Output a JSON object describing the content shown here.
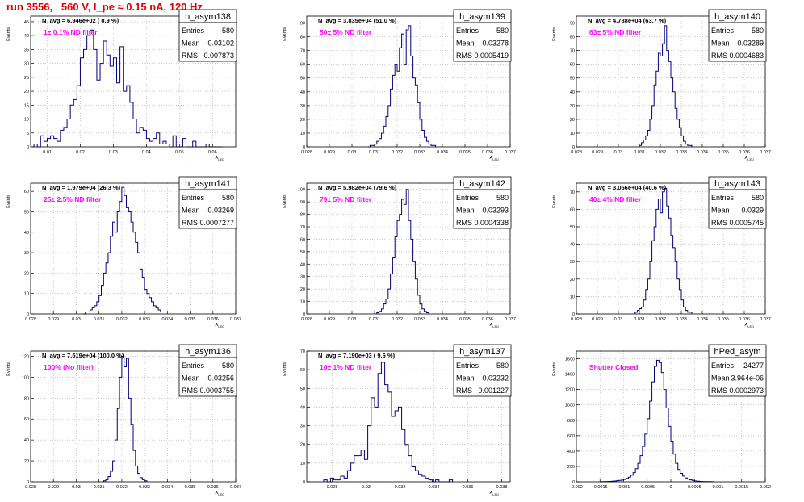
{
  "run_title": "run 3556,   560 V, I_pe ≈ 0.15 nA, 120 Hz",
  "colors": {
    "hist_line": "#00007a",
    "annotation": "#ff00ff",
    "title": "#e00000",
    "grid": "#aaaaaa"
  },
  "stat_labels": {
    "entries": "Entries",
    "mean": "Mean",
    "rms": "RMS"
  },
  "chart_data": [
    {
      "type": "histogram",
      "name": "h_asym138",
      "navg": "N_avg = 6.946e+02 ( 0.9 %)",
      "filter": "1± 0.1% ND filter",
      "entries": "580",
      "mean": "0.03102",
      "rms": "0.007873",
      "ylabel": "Events",
      "xlabel": "A_LED",
      "xlim": [
        0.005,
        0.067
      ],
      "ylim": [
        0,
        47
      ],
      "xticks": [
        0.01,
        0.02,
        0.03,
        0.04,
        0.05,
        0.06
      ],
      "xtick_labels": [
        "0.01",
        "0.02",
        "0.03",
        "0.04",
        "0.05",
        "0.06"
      ],
      "yticks": [
        0,
        5,
        10,
        15,
        20,
        25,
        30,
        35,
        40,
        45
      ],
      "bins": {
        "start": 0.006,
        "width": 0.001,
        "counts": [
          1,
          0,
          4,
          2,
          3,
          4,
          3,
          2,
          6,
          7,
          10,
          15,
          17,
          22,
          32,
          35,
          40,
          42,
          35,
          24,
          30,
          38,
          33,
          29,
          32,
          23,
          36,
          20,
          22,
          16,
          10,
          5,
          7,
          6,
          3,
          2,
          3,
          5,
          1,
          2,
          1,
          0,
          4,
          0,
          0,
          3,
          0,
          0,
          2,
          0,
          0,
          0,
          1,
          0,
          0,
          0,
          0
        ]
      }
    },
    {
      "type": "histogram",
      "name": "h_asym139",
      "navg": "N_avg = 3.835e+04 (51.0 %)",
      "filter": "50± 5% ND filter",
      "entries": "580",
      "mean": "0.03278",
      "rms": "0.0005419",
      "ylabel": "Events",
      "xlabel": "A_LED",
      "xlim": [
        0.028,
        0.037
      ],
      "ylim": [
        0,
        95
      ],
      "xticks": [
        0.028,
        0.029,
        0.03,
        0.031,
        0.032,
        0.033,
        0.034,
        0.035,
        0.036,
        0.037
      ],
      "xtick_labels": [
        "0.028",
        "0.029",
        "0.03",
        "0.031",
        "0.032",
        "0.033",
        "0.034",
        "0.035",
        "0.036",
        "0.037"
      ],
      "yticks": [
        0,
        10,
        20,
        30,
        40,
        50,
        60,
        70,
        80,
        90
      ],
      "bins": {
        "start": 0.0307,
        "width": 0.0001,
        "counts": [
          0,
          1,
          1,
          2,
          4,
          6,
          10,
          15,
          22,
          30,
          42,
          52,
          60,
          55,
          72,
          82,
          60,
          85,
          88,
          66,
          50,
          45,
          32,
          20,
          12,
          7,
          4,
          2,
          1,
          1
        ]
      }
    },
    {
      "type": "histogram",
      "name": "h_asym140",
      "navg": "N_avg = 4.788e+04 (63.7 %)",
      "filter": "63± 5% ND filter",
      "entries": "580",
      "mean": "0.03289",
      "rms": "0.0004683",
      "ylabel": "Events",
      "xlabel": "A_LED",
      "xlim": [
        0.028,
        0.037
      ],
      "ylim": [
        0,
        95
      ],
      "xticks": [
        0.028,
        0.029,
        0.03,
        0.031,
        0.032,
        0.033,
        0.034,
        0.035,
        0.036,
        0.037
      ],
      "xtick_labels": [
        "0.028",
        "0.029",
        "0.03",
        "0.031",
        "0.032",
        "0.033",
        "0.034",
        "0.035",
        "0.036",
        "0.037"
      ],
      "yticks": [
        0,
        10,
        20,
        30,
        40,
        50,
        60,
        70,
        80,
        90
      ],
      "bins": {
        "start": 0.031,
        "width": 0.0001,
        "counts": [
          1,
          3,
          5,
          8,
          12,
          20,
          30,
          45,
          55,
          68,
          66,
          75,
          88,
          70,
          62,
          50,
          40,
          28,
          20,
          14,
          8,
          4,
          2,
          1,
          1
        ]
      }
    },
    {
      "type": "histogram",
      "name": "h_asym141",
      "navg": "N_avg = 1.979e+04 (26.3 %)",
      "filter": "25± 2.5% ND filter",
      "entries": "580",
      "mean": "0.03269",
      "rms": "0.0007277",
      "ylabel": "Events",
      "xlabel": "A_LED",
      "xlim": [
        0.028,
        0.037
      ],
      "ylim": [
        0,
        64
      ],
      "xticks": [
        0.028,
        0.029,
        0.03,
        0.031,
        0.032,
        0.033,
        0.034,
        0.035,
        0.036,
        0.037
      ],
      "xtick_labels": [
        "0.028",
        "0.029",
        "0.03",
        "0.031",
        "0.032",
        "0.033",
        "0.034",
        "0.035",
        "0.036",
        "0.037"
      ],
      "yticks": [
        0,
        10,
        20,
        30,
        40,
        50,
        60
      ],
      "bins": {
        "start": 0.0303,
        "width": 0.0001,
        "counts": [
          0,
          1,
          1,
          2,
          3,
          4,
          6,
          9,
          14,
          20,
          25,
          30,
          38,
          45,
          40,
          50,
          55,
          62,
          58,
          52,
          50,
          45,
          40,
          35,
          30,
          22,
          18,
          12,
          10,
          8,
          6,
          4,
          3,
          2,
          1,
          1
        ]
      }
    },
    {
      "type": "histogram",
      "name": "h_asym142",
      "navg": "N_avg = 5.982e+04 (79.6 %)",
      "filter": "79± 5% ND filter",
      "entries": "580",
      "mean": "0.03293",
      "rms": "0.0004338",
      "ylabel": "Events",
      "xlabel": "A_LED",
      "xlim": [
        0.028,
        0.037
      ],
      "ylim": [
        0,
        105
      ],
      "xticks": [
        0.028,
        0.029,
        0.03,
        0.031,
        0.032,
        0.033,
        0.034,
        0.035,
        0.036,
        0.037
      ],
      "xtick_labels": [
        "0.028",
        "0.029",
        "0.03",
        "0.031",
        "0.032",
        "0.033",
        "0.034",
        "0.035",
        "0.036",
        "0.037"
      ],
      "yticks": [
        0,
        10,
        20,
        30,
        40,
        50,
        60,
        70,
        80,
        90,
        100
      ],
      "bins": {
        "start": 0.0311,
        "width": 0.0001,
        "counts": [
          1,
          2,
          4,
          8,
          12,
          20,
          32,
          45,
          62,
          75,
          80,
          92,
          88,
          100,
          75,
          60,
          42,
          28,
          15,
          8,
          4,
          2,
          1
        ]
      }
    },
    {
      "type": "histogram",
      "name": "h_asym143",
      "navg": "N_avg = 3.056e+04 (40.6 %)",
      "filter": "40± 4% ND filter",
      "entries": "580",
      "mean": "0.0329",
      "rms": "0.0005745",
      "ylabel": "Events",
      "xlabel": "A_LED",
      "xlim": [
        0.028,
        0.037
      ],
      "ylim": [
        0,
        75
      ],
      "xticks": [
        0.028,
        0.029,
        0.03,
        0.031,
        0.032,
        0.033,
        0.034,
        0.035,
        0.036,
        0.037
      ],
      "xtick_labels": [
        "0.028",
        "0.029",
        "0.03",
        "0.031",
        "0.032",
        "0.033",
        "0.034",
        "0.035",
        "0.036",
        "0.037"
      ],
      "yticks": [
        0,
        10,
        20,
        30,
        40,
        50,
        60,
        70
      ],
      "bins": {
        "start": 0.0308,
        "width": 0.0001,
        "counts": [
          1,
          2,
          3,
          4,
          8,
          14,
          20,
          30,
          42,
          50,
          60,
          66,
          58,
          70,
          72,
          62,
          55,
          45,
          38,
          30,
          20,
          14,
          8,
          4,
          2,
          1,
          1
        ]
      }
    },
    {
      "type": "histogram",
      "name": "h_asym136",
      "navg": "N_avg = 7.519e+04 (100.0 %)",
      "filter": "100% (No filter)",
      "entries": "580",
      "mean": "0.03256",
      "rms": "0.0003755",
      "ylabel": "Events",
      "xlabel": "A_LED",
      "xlim": [
        0.028,
        0.037
      ],
      "ylim": [
        0,
        125
      ],
      "xticks": [
        0.028,
        0.029,
        0.03,
        0.031,
        0.032,
        0.033,
        0.034,
        0.035,
        0.036,
        0.037
      ],
      "xtick_labels": [
        "0.028",
        "0.029",
        "0.03",
        "0.031",
        "0.032",
        "0.033",
        "0.034",
        "0.035",
        "0.036",
        "0.037"
      ],
      "yticks": [
        0,
        20,
        40,
        60,
        80,
        100,
        120
      ],
      "bins": {
        "start": 0.0312,
        "width": 0.0001,
        "counts": [
          1,
          2,
          5,
          10,
          20,
          40,
          70,
          100,
          120,
          110,
          118,
          80,
          55,
          30,
          15,
          8,
          4,
          2,
          1
        ]
      }
    },
    {
      "type": "histogram",
      "name": "h_asym137",
      "navg": "N_avg = 7.190e+03 ( 9.6 %)",
      "filter": "10± 1% ND filter",
      "entries": "580",
      "mean": "0.03232",
      "rms": "0.001227",
      "ylabel": "Events",
      "xlabel": "A_LED",
      "xlim": [
        0.0265,
        0.0385
      ],
      "ylim": [
        0,
        70
      ],
      "xticks": [
        0.028,
        0.03,
        0.032,
        0.034,
        0.036,
        0.038
      ],
      "xtick_labels": [
        "0.028",
        "0.03",
        "0.032",
        "0.034",
        "0.036",
        "0.038"
      ],
      "yticks": [
        0,
        10,
        20,
        30,
        40,
        50,
        60,
        70
      ],
      "bins": {
        "start": 0.0275,
        "width": 0.0002,
        "counts": [
          1,
          0,
          2,
          1,
          1,
          3,
          2,
          6,
          10,
          14,
          14,
          17,
          12,
          30,
          45,
          40,
          58,
          64,
          52,
          48,
          35,
          38,
          40,
          28,
          20,
          14,
          8,
          6,
          4,
          3,
          2,
          1,
          0,
          1,
          0,
          0,
          0,
          1
        ]
      }
    },
    {
      "type": "histogram",
      "name": "hPed_asym",
      "navg": "",
      "filter": "Shutter Closed",
      "entries": "24277",
      "mean": "3.964e-06",
      "rms": "0.0002973",
      "ylabel": "Events",
      "xlabel": "",
      "xlim": [
        -0.002,
        0.002
      ],
      "ylim": [
        0,
        1700
      ],
      "xticks": [
        -0.002,
        -0.0015,
        -0.001,
        -0.0005,
        0,
        0.0005,
        0.001,
        0.0015,
        0.002
      ],
      "xtick_labels": [
        "-0.002",
        "-0.0015",
        "-0.001",
        "-0.0005",
        "0",
        "0.0005",
        "0.001",
        "0.0015",
        "0.002"
      ],
      "yticks": [
        0,
        200,
        400,
        600,
        800,
        1000,
        1200,
        1400,
        1600
      ],
      "bins": {
        "start": -0.0015,
        "width": 5e-05,
        "counts": [
          2,
          2,
          3,
          4,
          5,
          8,
          10,
          14,
          18,
          22,
          30,
          45,
          60,
          85,
          120,
          170,
          240,
          340,
          460,
          620,
          820,
          1050,
          1300,
          1500,
          1580,
          1550,
          1420,
          1200,
          960,
          720,
          520,
          360,
          240,
          160,
          110,
          75,
          50,
          35,
          25,
          18,
          12,
          8,
          5,
          4,
          3,
          2,
          2,
          1
        ]
      }
    }
  ]
}
